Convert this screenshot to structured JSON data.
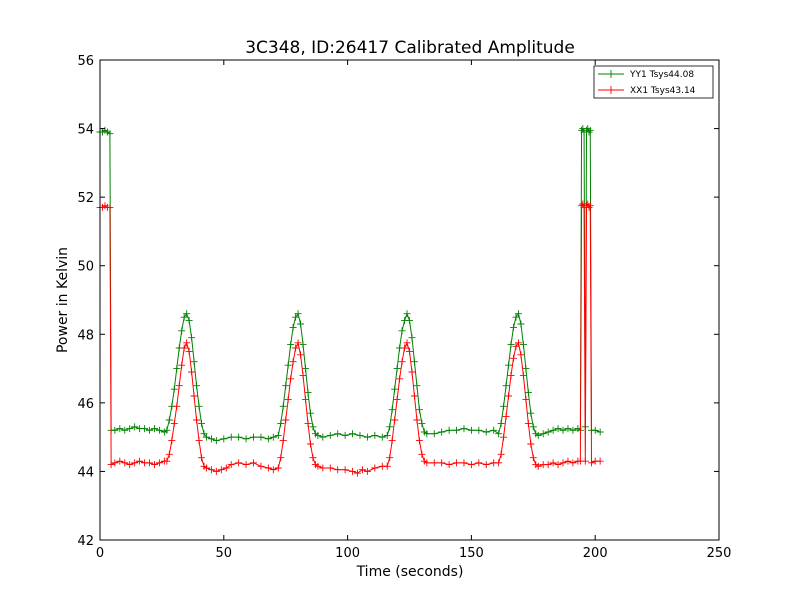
{
  "chart_data": {
    "type": "line",
    "title": "3C348, ID:26417 Calibrated Amplitude",
    "xlabel": "Time (seconds)",
    "ylabel": "Power in Kelvin",
    "xlim": [
      0,
      250
    ],
    "ylim": [
      42,
      56
    ],
    "xticks": [
      0,
      50,
      100,
      150,
      200,
      250
    ],
    "yticks": [
      42,
      44,
      46,
      48,
      50,
      52,
      54,
      56
    ],
    "grid": false,
    "legend_position": "top-right",
    "marker": "+",
    "series": [
      {
        "name": "YY1 Tsys44.08",
        "color": "#008000",
        "points": [
          [
            0,
            53.9
          ],
          [
            1,
            53.9
          ],
          [
            2,
            53.95
          ],
          [
            3,
            53.9
          ],
          [
            4,
            53.85
          ],
          [
            4.5,
            45.2
          ],
          [
            6,
            45.2
          ],
          [
            8,
            45.25
          ],
          [
            10,
            45.2
          ],
          [
            12,
            45.25
          ],
          [
            14,
            45.3
          ],
          [
            16,
            45.25
          ],
          [
            18,
            45.25
          ],
          [
            20,
            45.2
          ],
          [
            22,
            45.25
          ],
          [
            24,
            45.2
          ],
          [
            26,
            45.15
          ],
          [
            27,
            45.2
          ],
          [
            28,
            45.5
          ],
          [
            29,
            45.9
          ],
          [
            30,
            46.4
          ],
          [
            31,
            47.0
          ],
          [
            32,
            47.6
          ],
          [
            33,
            48.1
          ],
          [
            34,
            48.5
          ],
          [
            35,
            48.6
          ],
          [
            36,
            48.4
          ],
          [
            37,
            47.9
          ],
          [
            38,
            47.2
          ],
          [
            39,
            46.5
          ],
          [
            40,
            45.9
          ],
          [
            41,
            45.4
          ],
          [
            42,
            45.1
          ],
          [
            43,
            45.0
          ],
          [
            45,
            44.95
          ],
          [
            47,
            44.9
          ],
          [
            50,
            44.95
          ],
          [
            53,
            45.0
          ],
          [
            56,
            45.0
          ],
          [
            59,
            44.95
          ],
          [
            62,
            45.0
          ],
          [
            65,
            45.0
          ],
          [
            68,
            44.95
          ],
          [
            70,
            45.0
          ],
          [
            72,
            45.05
          ],
          [
            73,
            45.4
          ],
          [
            74,
            45.9
          ],
          [
            75,
            46.5
          ],
          [
            76,
            47.1
          ],
          [
            77,
            47.7
          ],
          [
            78,
            48.2
          ],
          [
            79,
            48.5
          ],
          [
            80,
            48.6
          ],
          [
            81,
            48.3
          ],
          [
            82,
            47.7
          ],
          [
            83,
            47.0
          ],
          [
            84,
            46.3
          ],
          [
            85,
            45.7
          ],
          [
            86,
            45.3
          ],
          [
            87,
            45.1
          ],
          [
            88,
            45.05
          ],
          [
            90,
            45.0
          ],
          [
            93,
            45.05
          ],
          [
            96,
            45.1
          ],
          [
            99,
            45.05
          ],
          [
            102,
            45.1
          ],
          [
            105,
            45.05
          ],
          [
            108,
            45.0
          ],
          [
            111,
            45.05
          ],
          [
            114,
            45.0
          ],
          [
            116,
            45.05
          ],
          [
            117,
            45.3
          ],
          [
            118,
            45.8
          ],
          [
            119,
            46.4
          ],
          [
            120,
            47.0
          ],
          [
            121,
            47.6
          ],
          [
            122,
            48.1
          ],
          [
            123,
            48.4
          ],
          [
            124,
            48.6
          ],
          [
            125,
            48.4
          ],
          [
            126,
            47.9
          ],
          [
            127,
            47.2
          ],
          [
            128,
            46.5
          ],
          [
            129,
            45.8
          ],
          [
            130,
            45.4
          ],
          [
            131,
            45.15
          ],
          [
            132,
            45.1
          ],
          [
            135,
            45.1
          ],
          [
            138,
            45.15
          ],
          [
            141,
            45.2
          ],
          [
            144,
            45.2
          ],
          [
            147,
            45.25
          ],
          [
            150,
            45.2
          ],
          [
            153,
            45.2
          ],
          [
            156,
            45.15
          ],
          [
            159,
            45.2
          ],
          [
            161,
            45.1
          ],
          [
            162,
            45.4
          ],
          [
            163,
            45.9
          ],
          [
            164,
            46.5
          ],
          [
            165,
            47.1
          ],
          [
            166,
            47.7
          ],
          [
            167,
            48.2
          ],
          [
            168,
            48.5
          ],
          [
            169,
            48.6
          ],
          [
            170,
            48.3
          ],
          [
            171,
            47.7
          ],
          [
            172,
            47.0
          ],
          [
            173,
            46.3
          ],
          [
            174,
            45.7
          ],
          [
            175,
            45.3
          ],
          [
            176,
            45.1
          ],
          [
            177,
            45.05
          ],
          [
            179,
            45.1
          ],
          [
            181,
            45.15
          ],
          [
            183,
            45.2
          ],
          [
            185,
            45.25
          ],
          [
            187,
            45.2
          ],
          [
            189,
            45.25
          ],
          [
            191,
            45.2
          ],
          [
            193,
            45.25
          ],
          [
            194,
            45.2
          ],
          [
            194.5,
            53.95
          ],
          [
            195,
            54.0
          ],
          [
            195.5,
            53.9
          ],
          [
            196,
            45.3
          ],
          [
            196.5,
            53.95
          ],
          [
            197,
            54.0
          ],
          [
            197.5,
            53.9
          ],
          [
            198,
            53.95
          ],
          [
            198.5,
            45.2
          ],
          [
            200,
            45.2
          ],
          [
            202,
            45.15
          ]
        ]
      },
      {
        "name": "XX1 Tsys43.14",
        "color": "#ff0000",
        "points": [
          [
            0,
            51.7
          ],
          [
            1,
            51.7
          ],
          [
            2,
            51.75
          ],
          [
            3,
            51.7
          ],
          [
            4,
            51.7
          ],
          [
            4.5,
            44.2
          ],
          [
            6,
            44.25
          ],
          [
            8,
            44.3
          ],
          [
            10,
            44.25
          ],
          [
            12,
            44.2
          ],
          [
            14,
            44.25
          ],
          [
            16,
            44.3
          ],
          [
            18,
            44.25
          ],
          [
            20,
            44.25
          ],
          [
            22,
            44.2
          ],
          [
            24,
            44.25
          ],
          [
            26,
            44.3
          ],
          [
            27,
            44.3
          ],
          [
            28,
            44.5
          ],
          [
            29,
            44.9
          ],
          [
            30,
            45.4
          ],
          [
            31,
            45.9
          ],
          [
            32,
            46.5
          ],
          [
            33,
            47.1
          ],
          [
            34,
            47.6
          ],
          [
            35,
            47.75
          ],
          [
            36,
            47.5
          ],
          [
            37,
            46.9
          ],
          [
            38,
            46.2
          ],
          [
            39,
            45.5
          ],
          [
            40,
            44.9
          ],
          [
            41,
            44.4
          ],
          [
            42,
            44.15
          ],
          [
            43,
            44.1
          ],
          [
            45,
            44.05
          ],
          [
            47,
            44.0
          ],
          [
            49,
            44.05
          ],
          [
            51,
            44.1
          ],
          [
            53,
            44.2
          ],
          [
            56,
            44.25
          ],
          [
            59,
            44.2
          ],
          [
            62,
            44.25
          ],
          [
            65,
            44.15
          ],
          [
            68,
            44.1
          ],
          [
            70,
            44.05
          ],
          [
            72,
            44.1
          ],
          [
            73,
            44.4
          ],
          [
            74,
            44.9
          ],
          [
            75,
            45.5
          ],
          [
            76,
            46.1
          ],
          [
            77,
            46.7
          ],
          [
            78,
            47.2
          ],
          [
            79,
            47.6
          ],
          [
            80,
            47.75
          ],
          [
            81,
            47.4
          ],
          [
            82,
            46.8
          ],
          [
            83,
            46.1
          ],
          [
            84,
            45.4
          ],
          [
            85,
            44.8
          ],
          [
            86,
            44.4
          ],
          [
            87,
            44.2
          ],
          [
            88,
            44.15
          ],
          [
            90,
            44.1
          ],
          [
            93,
            44.1
          ],
          [
            96,
            44.05
          ],
          [
            99,
            44.05
          ],
          [
            102,
            44.0
          ],
          [
            104,
            43.95
          ],
          [
            106,
            44.05
          ],
          [
            108,
            44.0
          ],
          [
            111,
            44.1
          ],
          [
            114,
            44.15
          ],
          [
            116,
            44.15
          ],
          [
            117,
            44.4
          ],
          [
            118,
            44.9
          ],
          [
            119,
            45.5
          ],
          [
            120,
            46.1
          ],
          [
            121,
            46.7
          ],
          [
            122,
            47.2
          ],
          [
            123,
            47.6
          ],
          [
            124,
            47.75
          ],
          [
            125,
            47.5
          ],
          [
            126,
            46.9
          ],
          [
            127,
            46.2
          ],
          [
            128,
            45.5
          ],
          [
            129,
            44.9
          ],
          [
            130,
            44.5
          ],
          [
            131,
            44.3
          ],
          [
            132,
            44.25
          ],
          [
            135,
            44.25
          ],
          [
            138,
            44.25
          ],
          [
            141,
            44.2
          ],
          [
            144,
            44.25
          ],
          [
            147,
            44.25
          ],
          [
            150,
            44.2
          ],
          [
            153,
            44.25
          ],
          [
            156,
            44.2
          ],
          [
            159,
            44.25
          ],
          [
            161,
            44.25
          ],
          [
            162,
            44.5
          ],
          [
            163,
            45.0
          ],
          [
            164,
            45.6
          ],
          [
            165,
            46.2
          ],
          [
            166,
            46.8
          ],
          [
            167,
            47.3
          ],
          [
            168,
            47.65
          ],
          [
            169,
            47.75
          ],
          [
            170,
            47.4
          ],
          [
            171,
            46.8
          ],
          [
            172,
            46.1
          ],
          [
            173,
            45.4
          ],
          [
            174,
            44.8
          ],
          [
            175,
            44.4
          ],
          [
            176,
            44.2
          ],
          [
            177,
            44.15
          ],
          [
            179,
            44.2
          ],
          [
            181,
            44.2
          ],
          [
            183,
            44.25
          ],
          [
            185,
            44.2
          ],
          [
            187,
            44.25
          ],
          [
            189,
            44.3
          ],
          [
            191,
            44.25
          ],
          [
            193,
            44.3
          ],
          [
            194,
            44.3
          ],
          [
            194.5,
            51.75
          ],
          [
            195,
            51.8
          ],
          [
            195.5,
            51.7
          ],
          [
            196,
            44.3
          ],
          [
            196.5,
            51.75
          ],
          [
            197,
            51.8
          ],
          [
            197.5,
            51.7
          ],
          [
            198,
            51.75
          ],
          [
            198.5,
            44.25
          ],
          [
            200,
            44.3
          ],
          [
            202,
            44.3
          ]
        ]
      }
    ]
  }
}
